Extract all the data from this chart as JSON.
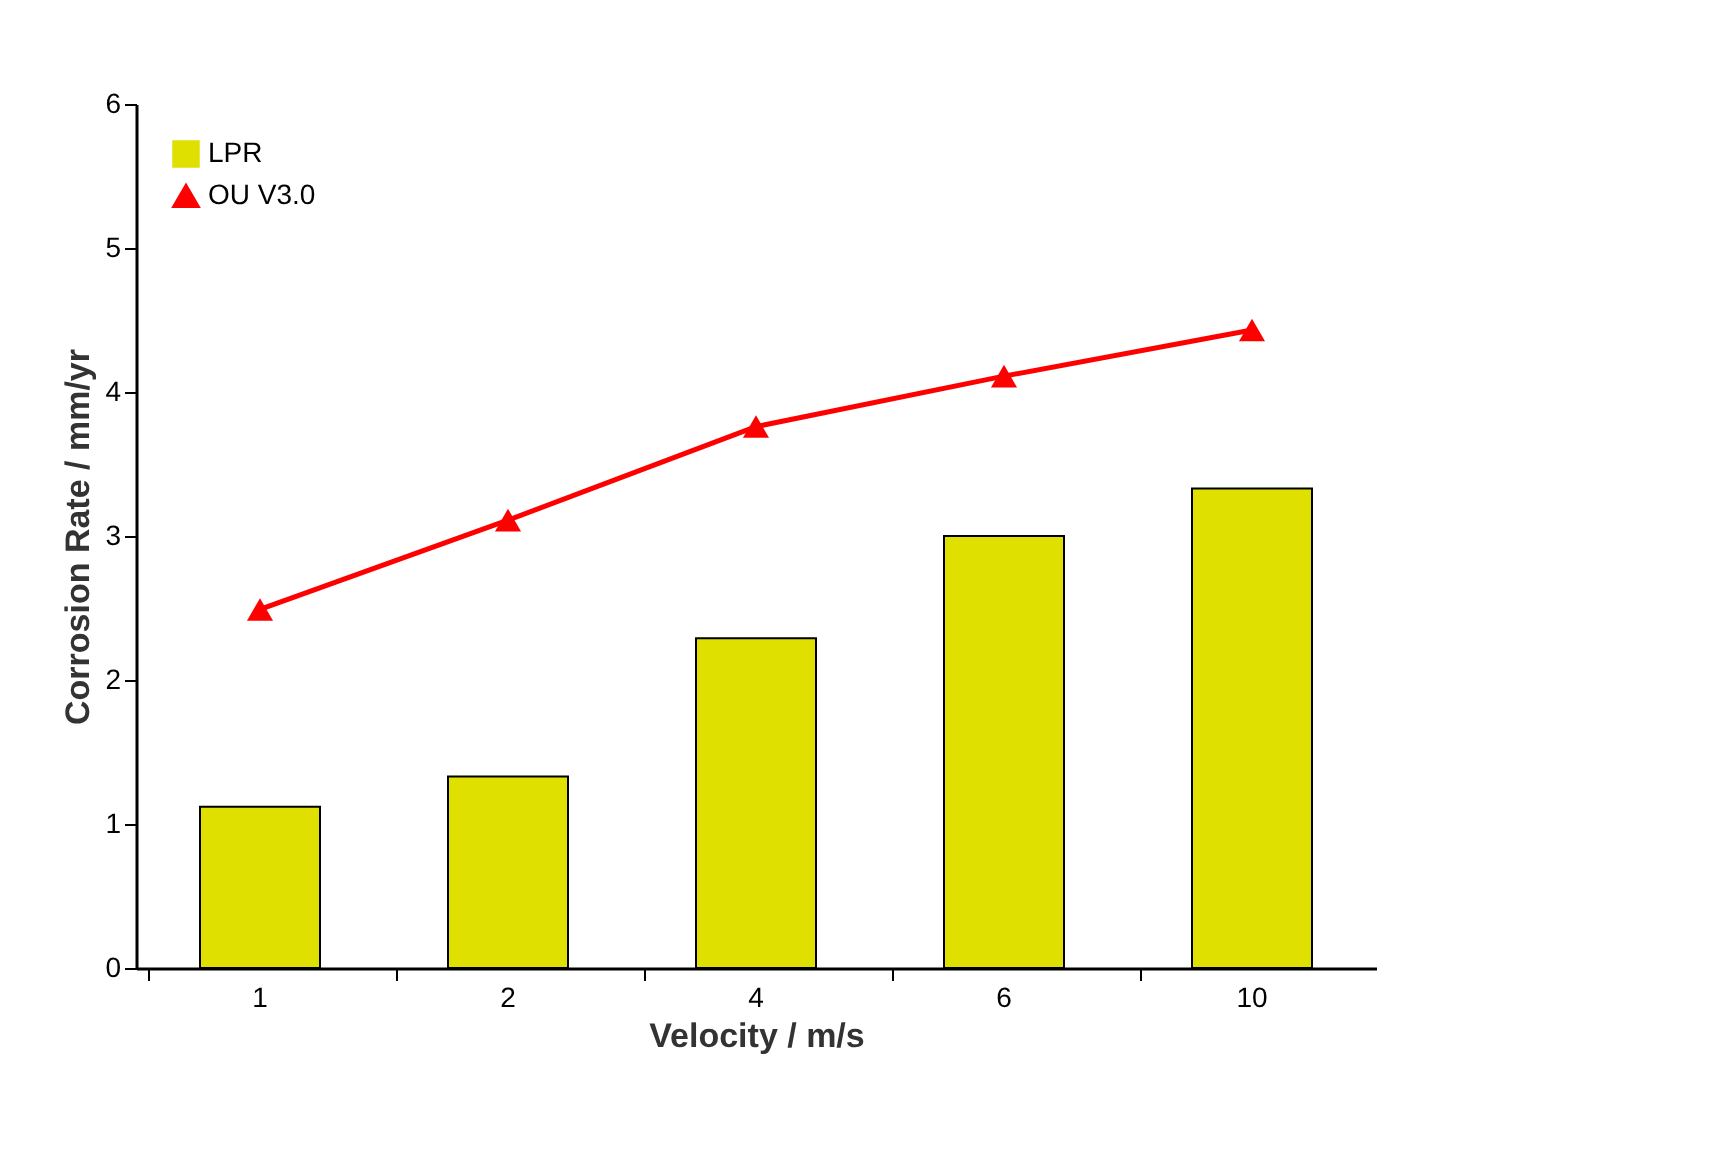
{
  "chart_data": {
    "type": "bar",
    "xlabel": "Velocity / m/s",
    "ylabel": "Corrosion Rate / mm/yr",
    "categories": [
      "1",
      "2",
      "4",
      "6",
      "10"
    ],
    "series": [
      {
        "name": "LPR",
        "color": "#e0e000",
        "values": [
          1.12,
          1.33,
          2.29,
          3.0,
          3.33
        ]
      },
      {
        "name": "OU V3.0",
        "type": "line",
        "color": "#ff0000",
        "marker": "triangle",
        "values": [
          2.49,
          3.11,
          3.76,
          4.11,
          4.43
        ]
      }
    ],
    "ylim": [
      0,
      6
    ],
    "yticks": [
      0,
      1,
      2,
      3,
      4,
      5,
      6
    ],
    "grid": false,
    "legend": "top left"
  }
}
